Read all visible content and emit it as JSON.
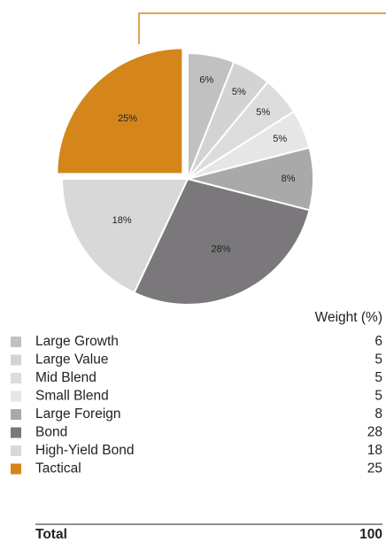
{
  "chart_data": {
    "type": "pie",
    "categories": [
      "Large Growth",
      "Large Value",
      "Mid Blend",
      "Small Blend",
      "Large Foreign",
      "Bond",
      "High-Yield Bond",
      "Tactical"
    ],
    "values": [
      6,
      5,
      5,
      5,
      8,
      28,
      18,
      25
    ],
    "value_labels": [
      "6%",
      "5%",
      "5%",
      "5%",
      "8%",
      "28%",
      "18%",
      "25%"
    ],
    "colors": [
      "#c1c1c1",
      "#d3d3d3",
      "#dcdcdc",
      "#e6e6e6",
      "#a9a9a9",
      "#7a787b",
      "#d8d8d8",
      "#d4861a"
    ],
    "exploded": "Tactical",
    "value_column_label": "Weight (%)",
    "total": {
      "label": "Total",
      "value": 100
    }
  }
}
